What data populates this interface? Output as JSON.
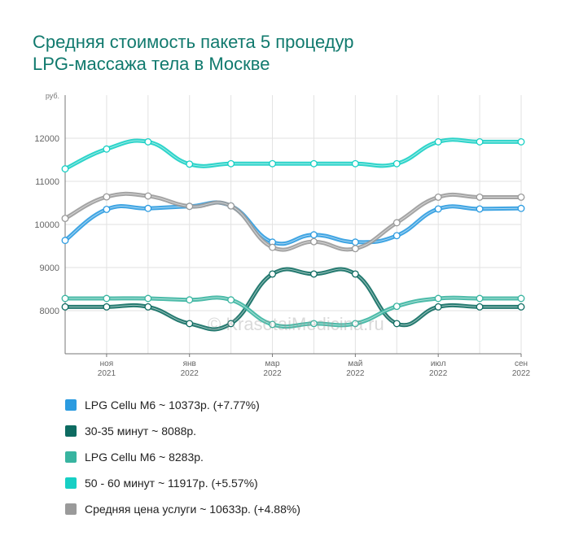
{
  "title": {
    "line1": "Средняя стоимость пакета 5 процедур",
    "line2": "LPG-массажа тела в Москве"
  },
  "watermark": "© KrasotaiMedicina.ru",
  "chart_data": {
    "type": "line",
    "smooth": true,
    "y_unit_label": "руб.",
    "ylim": [
      7000,
      13000
    ],
    "yticks": [
      8000,
      9000,
      10000,
      11000,
      12000
    ],
    "grid": true,
    "x_month_labels": [
      {
        "i": 1,
        "month": "ноя",
        "year": "2021"
      },
      {
        "i": 3,
        "month": "янв",
        "year": "2022"
      },
      {
        "i": 5,
        "month": "мар",
        "year": "2022"
      },
      {
        "i": 7,
        "month": "май",
        "year": "2022"
      },
      {
        "i": 9,
        "month": "июл",
        "year": "2022"
      },
      {
        "i": 11,
        "month": "сен",
        "year": "2022"
      }
    ],
    "x": [
      "2021-10",
      "2021-11",
      "2021-12",
      "2022-01",
      "2022-02",
      "2022-03",
      "2022-04",
      "2022-05",
      "2022-06",
      "2022-07",
      "2022-08",
      "2022-09"
    ],
    "series": [
      {
        "name": "LPG Cellu M6 ~ 10373р. (+7.77%)",
        "color": "#2b9be0",
        "values": [
          9630,
          10350,
          10373,
          10420,
          10430,
          9590,
          9760,
          9590,
          9740,
          10360,
          10360,
          10373
        ]
      },
      {
        "name": "30-35 минут ~ 8088р.",
        "color": "#0d6b61",
        "values": [
          8088,
          8088,
          8088,
          7700,
          7700,
          8850,
          8850,
          8850,
          7700,
          8088,
          8088,
          8088
        ]
      },
      {
        "name": "LPG Cellu M6 ~ 8283р.",
        "color": "#38b4a0",
        "values": [
          8283,
          8283,
          8283,
          8250,
          8250,
          7680,
          7700,
          7700,
          8100,
          8283,
          8283,
          8283
        ]
      },
      {
        "name": "50 - 60 минут ~ 11917р. (+5.57%)",
        "color": "#17cfc4",
        "values": [
          11290,
          11750,
          11917,
          11400,
          11410,
          11410,
          11410,
          11410,
          11410,
          11917,
          11917,
          11917
        ]
      },
      {
        "name": "Средняя цена услуги ~ 10633р. (+4.88%)",
        "color": "#9a9a9a",
        "values": [
          10140,
          10640,
          10660,
          10420,
          10430,
          9470,
          9600,
          9440,
          10040,
          10633,
          10633,
          10633
        ]
      }
    ]
  }
}
